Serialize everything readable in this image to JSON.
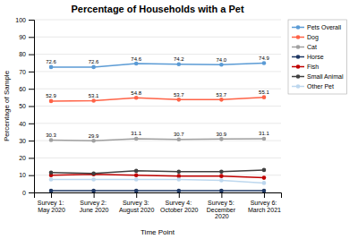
{
  "chart_data": {
    "type": "line",
    "title": "Percentage of Households with a Pet",
    "x_label": "Time Point",
    "y_label": "Percentage of Sample",
    "categories": [
      "Survey 1:\nMay 2020",
      "Survey 2:\nJune 2020",
      "Survey 3:\nAugust 2020",
      "Survey 4:\nOctober 2020",
      "Survey 5:\nDecember\n2020",
      "Survey 6:\nMarch 2021"
    ],
    "series": [
      {
        "name": "Pets Overall",
        "color": "#5B9BD5",
        "marker": "circle",
        "data_labels": true,
        "values": [
          72.6,
          72.6,
          74.6,
          74.2,
          74.0,
          74.9
        ],
        "value_labels": [
          "72.6",
          "72.6",
          "74.6",
          "74.2",
          "74.0",
          "74.9"
        ]
      },
      {
        "name": "Dog",
        "color": "#FF6347",
        "marker": "circle",
        "data_labels": true,
        "values": [
          52.9,
          53.1,
          54.8,
          53.7,
          53.7,
          55.1
        ]
      },
      {
        "name": "Cat",
        "color": "#A0A0A0",
        "marker": "circle",
        "data_labels": true,
        "values": [
          30.3,
          29.9,
          31.1,
          30.7,
          30.9,
          31.1
        ]
      },
      {
        "name": "Horse",
        "color": "#1F3864",
        "marker": "circle",
        "values": [
          1.0,
          1.0,
          1.0,
          1.0,
          1.0,
          1.0
        ]
      },
      {
        "name": "Fish",
        "color": "#C00000",
        "marker": "circle",
        "values": [
          10.0,
          10.5,
          10.0,
          9.5,
          9.5,
          8.5
        ]
      },
      {
        "name": "Small Animal",
        "color": "#404040",
        "marker": "circle",
        "values": [
          11.5,
          11.0,
          12.5,
          12.0,
          12.0,
          13.0
        ]
      },
      {
        "name": "Other Pet",
        "color": "#BDD7EE",
        "marker": "circle",
        "values": [
          7.5,
          7.5,
          7.5,
          7.5,
          7.0,
          5.5
        ]
      }
    ],
    "ylim": [
      0,
      100
    ],
    "yticks": [
      0,
      10,
      20,
      30,
      40,
      50,
      60,
      70,
      80,
      90,
      100
    ],
    "grid": true,
    "legend": "right"
  }
}
